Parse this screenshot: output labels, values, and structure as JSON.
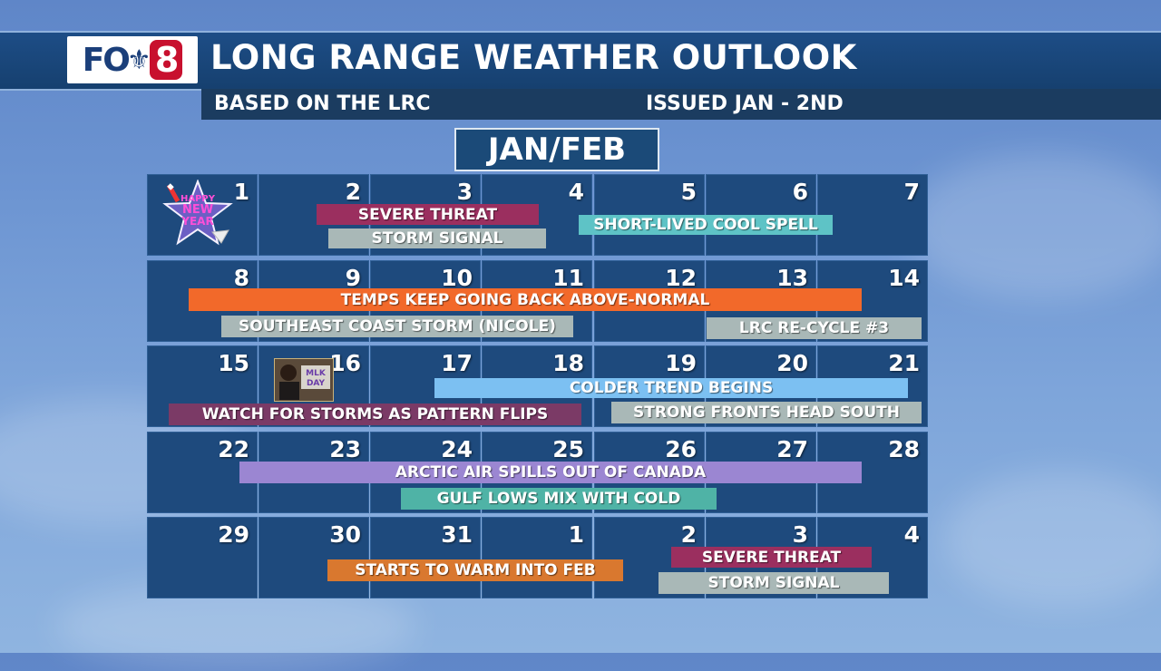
{
  "header": {
    "logo_text": "FOX8",
    "title": "LONG RANGE WEATHER OUTLOOK",
    "subtitle_left": "BASED ON THE LRC",
    "subtitle_right": "ISSUED JAN - 2ND"
  },
  "month_label": "JAN/FEB",
  "weeks": [
    [
      "1",
      "2",
      "3",
      "4",
      "5",
      "6",
      "7"
    ],
    [
      "8",
      "9",
      "10",
      "11",
      "12",
      "13",
      "14"
    ],
    [
      "15",
      "16",
      "17",
      "18",
      "19",
      "20",
      "21"
    ],
    [
      "22",
      "23",
      "24",
      "25",
      "26",
      "27",
      "28"
    ],
    [
      "29",
      "30",
      "31",
      "1",
      "2",
      "3",
      "4"
    ]
  ],
  "icons": {
    "new_year": {
      "name": "happy-new-year-icon",
      "text": "HAPPY NEW YEAR"
    },
    "mlk": {
      "name": "mlk-day-icon",
      "text": "MLK DAY"
    }
  },
  "events": [
    {
      "label": "SEVERE THREAT",
      "color": "#9b2f5f"
    },
    {
      "label": "STORM SIGNAL",
      "color": "#a9b8b7"
    },
    {
      "label": "SHORT-LIVED COOL SPELL",
      "color": "#5ec3c6"
    },
    {
      "label": "TEMPS KEEP GOING BACK ABOVE-NORMAL",
      "color": "#f2692a"
    },
    {
      "label": "SOUTHEAST COAST STORM (NICOLE)",
      "color": "#a9b8b7"
    },
    {
      "label": "LRC RE-CYCLE #3",
      "color": "#a9b8b7"
    },
    {
      "label": "COLDER TREND BEGINS",
      "color": "#7cc0f2"
    },
    {
      "label": "WATCH FOR STORMS AS PATTERN FLIPS",
      "color": "#7b3a66"
    },
    {
      "label": "STRONG FRONTS HEAD SOUTH",
      "color": "#a9b8b7"
    },
    {
      "label": "ARCTIC AIR SPILLS OUT OF CANADA",
      "color": "#9b86d2"
    },
    {
      "label": "GULF LOWS MIX WITH COLD",
      "color": "#4fb3a6"
    },
    {
      "label": "STARTS TO WARM INTO FEB",
      "color": "#d9782f"
    },
    {
      "label": "SEVERE THREAT",
      "color": "#9b2f5f"
    },
    {
      "label": "STORM SIGNAL",
      "color": "#a9b8b7"
    }
  ]
}
